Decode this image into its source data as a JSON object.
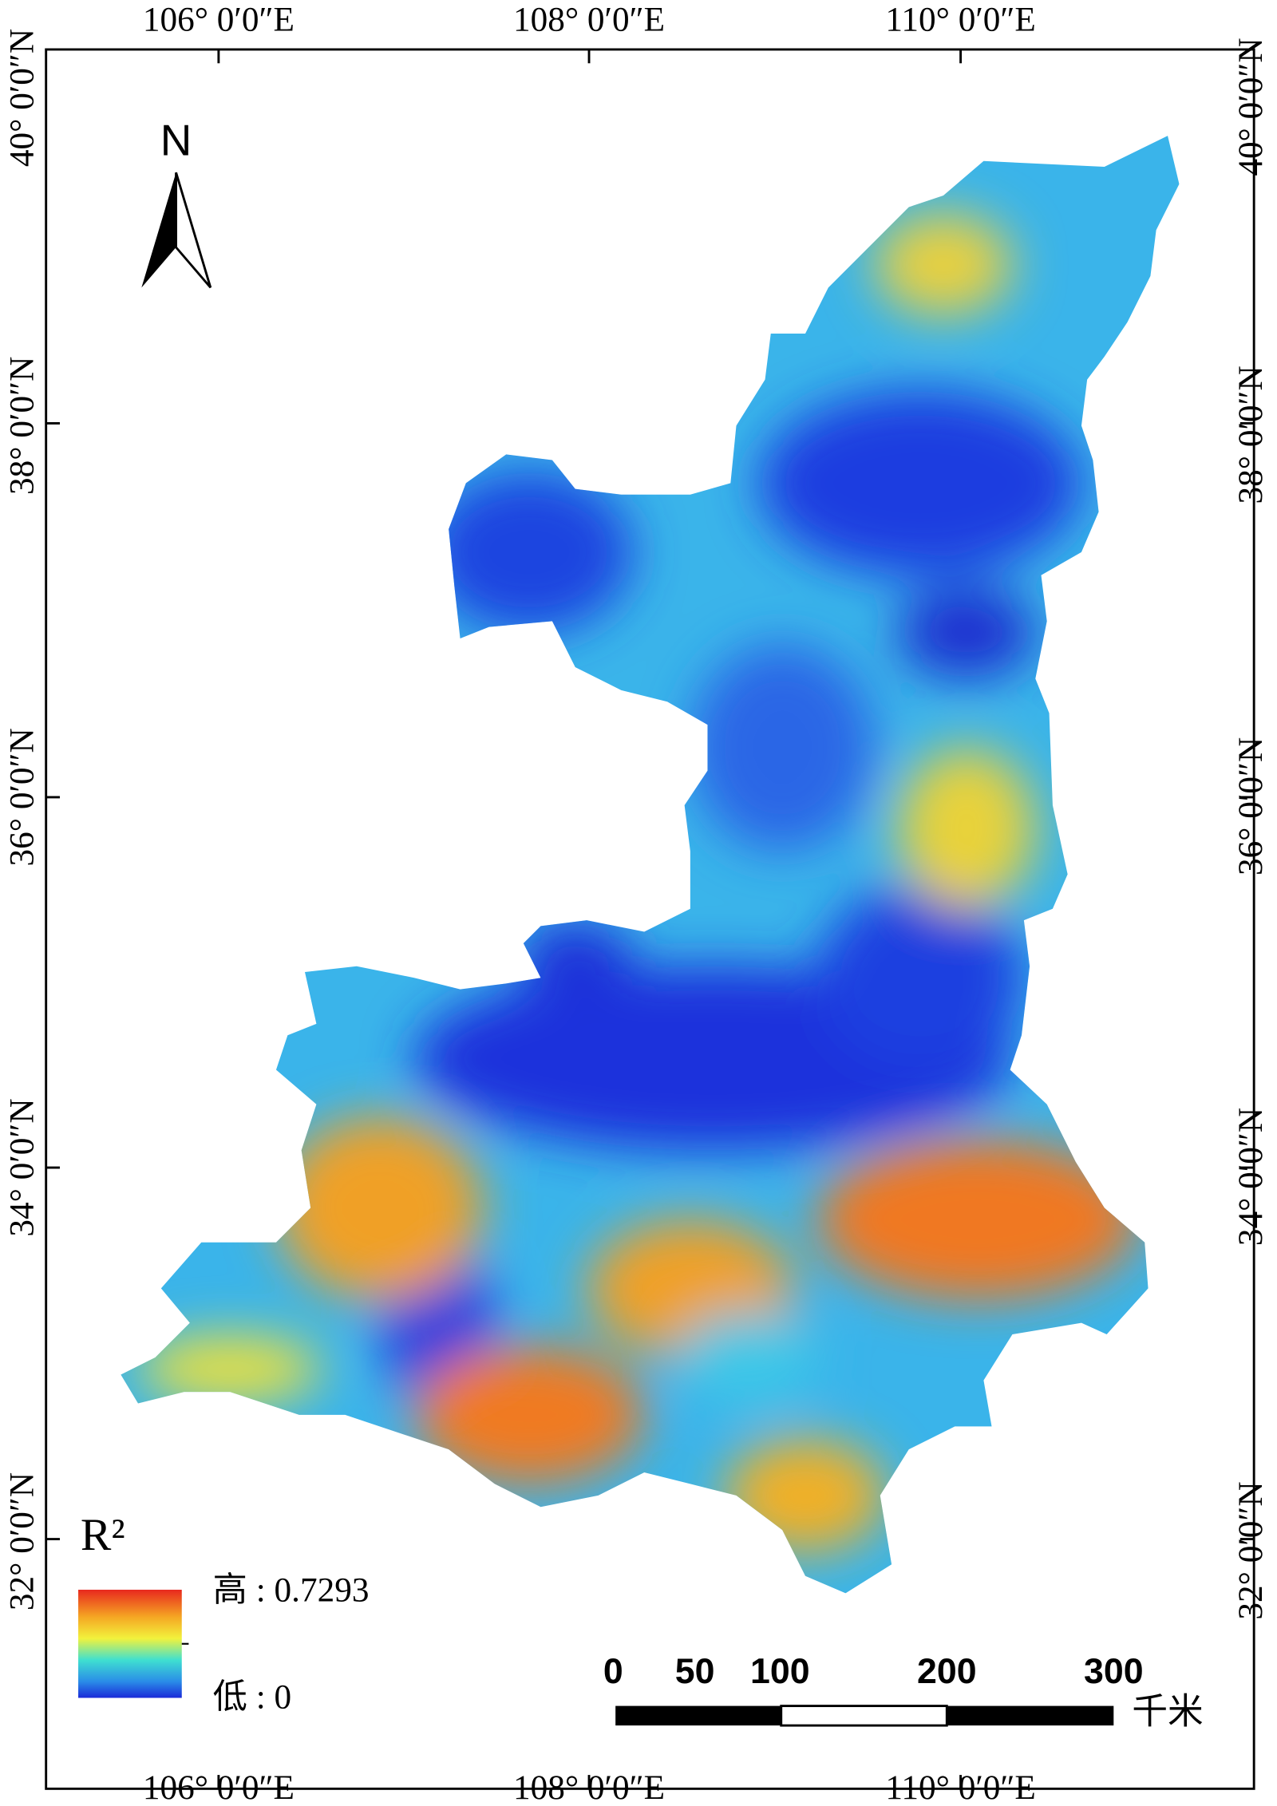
{
  "axes": {
    "top_labels": [
      "106° 0′0″E",
      "108° 0′0″E",
      "110° 0′0″E"
    ],
    "bottom_labels": [
      "106° 0′0″E",
      "108° 0′0″E",
      "110° 0′0″E"
    ],
    "left_labels": [
      "40° 0′0″N",
      "38° 0′0″N",
      "36° 0′0″N",
      "34° 0′0″N",
      "32° 0′0″N"
    ],
    "right_labels": [
      "40° 0′0″N",
      "38° 0′0″N",
      "36° 0′0″N",
      "34° 0′0″N",
      "32° 0′0″N"
    ]
  },
  "north_label": "N",
  "legend": {
    "title": "R²",
    "high": "高 : 0.7293",
    "low": "低 : 0"
  },
  "scale_bar": {
    "labels": [
      "0",
      "50",
      "100",
      "200",
      "300"
    ],
    "unit": "千米"
  }
}
